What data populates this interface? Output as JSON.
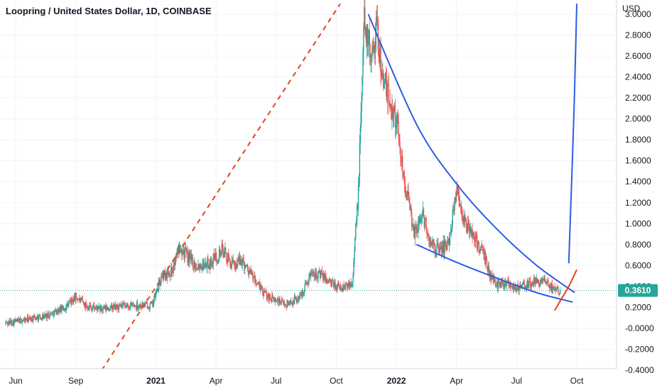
{
  "chart_data": {
    "type": "candlestick",
    "title": "Loopring / United States Dollar, 1D, COINBASE",
    "currency_label": "USD",
    "y_ticks": [
      "3.0000",
      "2.8000",
      "2.6000",
      "2.4000",
      "2.2000",
      "2.0000",
      "1.8000",
      "1.6000",
      "1.4000",
      "1.2000",
      "1.0000",
      "0.8000",
      "0.6000",
      "0.4000",
      "0.2000",
      "-0.0000",
      "-0.2000",
      "-0.4000"
    ],
    "ylim": [
      -0.4,
      3.0
    ],
    "x_ticks": [
      {
        "label": "Jun",
        "t": 0,
        "bold": false
      },
      {
        "label": "Sep",
        "t": 3,
        "bold": false
      },
      {
        "label": "2021",
        "t": 7,
        "bold": true
      },
      {
        "label": "Apr",
        "t": 10,
        "bold": false
      },
      {
        "label": "Jul",
        "t": 13,
        "bold": false
      },
      {
        "label": "Oct",
        "t": 16,
        "bold": false
      },
      {
        "label": "2022",
        "t": 19,
        "bold": true
      },
      {
        "label": "Apr",
        "t": 22,
        "bold": false
      },
      {
        "label": "Jul",
        "t": 25,
        "bold": false
      },
      {
        "label": "Oct",
        "t": 28,
        "bold": false
      }
    ],
    "x_unit": "months since Jun 2020",
    "price_keypoints": [
      [
        -0.5,
        0.05
      ],
      [
        0.5,
        0.08
      ],
      [
        1.5,
        0.12
      ],
      [
        2.5,
        0.2
      ],
      [
        3.0,
        0.3
      ],
      [
        3.5,
        0.22
      ],
      [
        4.2,
        0.18
      ],
      [
        5.0,
        0.2
      ],
      [
        6.0,
        0.22
      ],
      [
        6.8,
        0.22
      ],
      [
        7.3,
        0.5
      ],
      [
        7.8,
        0.55
      ],
      [
        8.2,
        0.8
      ],
      [
        8.5,
        0.7
      ],
      [
        9.0,
        0.6
      ],
      [
        9.7,
        0.62
      ],
      [
        10.3,
        0.75
      ],
      [
        10.8,
        0.6
      ],
      [
        11.3,
        0.65
      ],
      [
        11.8,
        0.5
      ],
      [
        12.3,
        0.35
      ],
      [
        12.8,
        0.28
      ],
      [
        13.5,
        0.23
      ],
      [
        14.2,
        0.3
      ],
      [
        14.8,
        0.55
      ],
      [
        15.3,
        0.5
      ],
      [
        15.8,
        0.42
      ],
      [
        16.3,
        0.38
      ],
      [
        16.8,
        0.45
      ],
      [
        17.1,
        1.3
      ],
      [
        17.4,
        3.0
      ],
      [
        17.7,
        2.6
      ],
      [
        18.0,
        2.9
      ],
      [
        18.3,
        2.4
      ],
      [
        18.6,
        2.2
      ],
      [
        19.0,
        2.0
      ],
      [
        19.3,
        1.55
      ],
      [
        19.6,
        1.2
      ],
      [
        19.9,
        0.9
      ],
      [
        20.3,
        1.1
      ],
      [
        20.7,
        0.8
      ],
      [
        21.1,
        0.75
      ],
      [
        21.6,
        0.8
      ],
      [
        22.0,
        1.35
      ],
      [
        22.4,
        1.0
      ],
      [
        22.8,
        0.9
      ],
      [
        23.3,
        0.72
      ],
      [
        23.7,
        0.5
      ],
      [
        24.0,
        0.42
      ],
      [
        24.5,
        0.45
      ],
      [
        25.0,
        0.38
      ],
      [
        25.6,
        0.42
      ],
      [
        26.2,
        0.45
      ],
      [
        26.7,
        0.4
      ],
      [
        27.2,
        0.36
      ]
    ],
    "last_price": 0.361,
    "last_price_label": "0.3610",
    "annotations": [
      {
        "name": "dashed-trendline",
        "color": "#e0451f",
        "style": "dashed",
        "points": [
          [
            4.3,
            -0.4
          ],
          [
            16.2,
            3.1
          ]
        ]
      },
      {
        "name": "upper-resistance-curve",
        "color": "#2d5be3",
        "style": "curve",
        "points": [
          [
            17.6,
            3.0
          ],
          [
            20.0,
            1.95
          ],
          [
            22.0,
            1.38
          ],
          [
            24.0,
            0.95
          ],
          [
            26.0,
            0.6
          ],
          [
            27.9,
            0.34
          ]
        ]
      },
      {
        "name": "lower-support-curve",
        "color": "#2d5be3",
        "style": "curve",
        "points": [
          [
            20.0,
            0.8
          ],
          [
            22.0,
            0.63
          ],
          [
            24.0,
            0.48
          ],
          [
            26.0,
            0.34
          ],
          [
            27.8,
            0.25
          ]
        ]
      },
      {
        "name": "red-breakout-curve",
        "color": "#e0451f",
        "style": "curve",
        "points": [
          [
            26.9,
            0.17
          ],
          [
            27.2,
            0.27
          ],
          [
            27.6,
            0.4
          ],
          [
            28.0,
            0.56
          ]
        ]
      },
      {
        "name": "blue-vertical-projection",
        "color": "#2d5be3",
        "style": "curve",
        "points": [
          [
            27.6,
            0.62
          ],
          [
            27.85,
            2.0
          ],
          [
            28.0,
            3.1
          ]
        ]
      }
    ],
    "colors": {
      "up": "#26a69a",
      "down": "#ef5350",
      "last_price": "#26a69a",
      "grid": "#f0f3fa"
    },
    "grid": true,
    "legend": "none"
  }
}
